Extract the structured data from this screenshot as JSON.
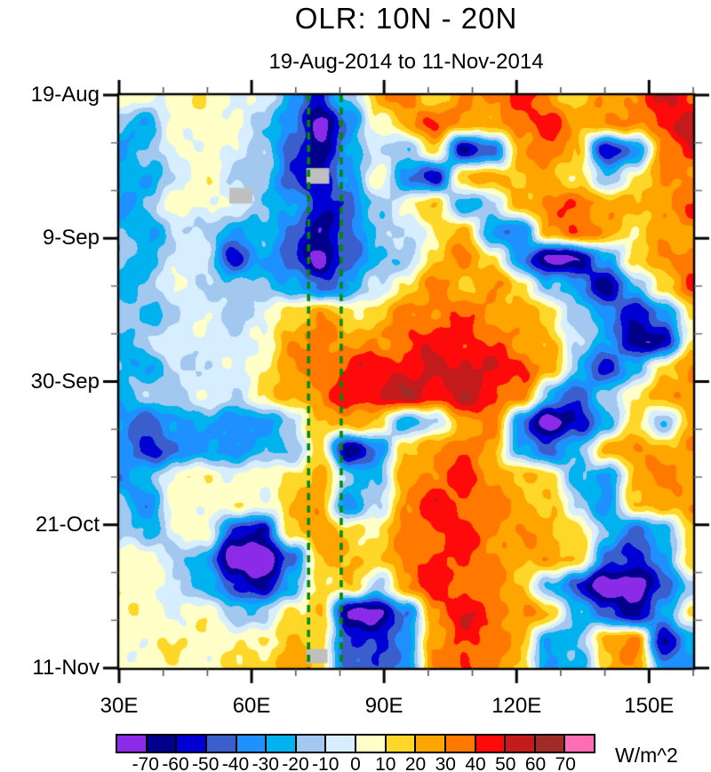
{
  "header": {
    "title": "OLR: 10N - 20N",
    "subtitle": "19-Aug-2014 to 11-Nov-2014"
  },
  "chart_data": {
    "type": "heatmap",
    "title": "OLR: 10N - 20N",
    "subtitle": "19-Aug-2014 to 11-Nov-2014",
    "units": "W/m^2",
    "x_axis": {
      "min_lon": 30,
      "max_lon": 160,
      "major_tick_lons": [
        30,
        60,
        90,
        120,
        150
      ],
      "major_tick_labels": [
        "30E",
        "60E",
        "90E",
        "120E",
        "150E"
      ],
      "minor_tick_lons": [
        40,
        50,
        70,
        80,
        100,
        110,
        130,
        140,
        160
      ]
    },
    "y_axis": {
      "min_day": 0,
      "max_day": 84,
      "major_tick_days": [
        0,
        21,
        42,
        63,
        84
      ],
      "major_tick_labels": [
        "19-Aug",
        "9-Sep",
        "30-Sep",
        "21-Oct",
        "11-Nov"
      ],
      "minor_tick_days": [
        7,
        14,
        28,
        35,
        49,
        56,
        70,
        77
      ]
    },
    "levels": [
      -70,
      -60,
      -50,
      -40,
      -30,
      -20,
      -10,
      0,
      10,
      20,
      30,
      40,
      50,
      60,
      70
    ],
    "palette": [
      "#8B2BE8",
      "#00008B",
      "#0000D5",
      "#3A5FCD",
      "#1E90FF",
      "#00B2EE",
      "#A2C8F0",
      "#D6EEFF",
      "#FFFFC8",
      "#FFD728",
      "#FFA500",
      "#FF7800",
      "#FF0A0A",
      "#C31A1C",
      "#9E2B28",
      "#FF6EB4"
    ],
    "colorbar": {
      "tick_labels": [
        "-70",
        "-60",
        "-50",
        "-40",
        "-30",
        "-20",
        "-10",
        "0",
        "10",
        "20",
        "30",
        "40",
        "50",
        "60",
        "70"
      ],
      "units": "W/m^2"
    },
    "reference_lines": [
      {
        "lon": 72.9,
        "color": "#008A00",
        "style": "dashed"
      },
      {
        "lon": 80.3,
        "color": "#008A00",
        "style": "dashed"
      }
    ],
    "missing_boxes": [
      {
        "lon0": 55.0,
        "lon1": 60.2,
        "day0": 13.6,
        "day1": 15.9
      },
      {
        "lon0": 72.4,
        "lon1": 77.6,
        "day0": 10.7,
        "day1": 13.0
      },
      {
        "lon0": 72.4,
        "lon1": 77.2,
        "day0": 81.2,
        "day1": 83.3
      }
    ],
    "missing_color": "#BFBFBF",
    "grid": {
      "lons": [
        30,
        36.5,
        43,
        49.5,
        56,
        62.5,
        69,
        75.5,
        82,
        88.5,
        95,
        101.5,
        108,
        114.5,
        121,
        127.5,
        134,
        140.5,
        147,
        153.5,
        160
      ],
      "days": [
        0,
        4,
        8,
        12,
        16,
        20,
        24,
        28,
        32,
        36,
        40,
        44,
        48,
        52,
        56,
        60,
        64,
        68,
        72,
        76,
        80,
        84
      ],
      "values": [
        [
          5,
          3,
          6,
          6,
          4,
          -5,
          -25,
          -55,
          -15,
          25,
          35,
          15,
          25,
          35,
          45,
          30,
          15,
          25,
          35,
          50,
          45
        ],
        [
          -12,
          -30,
          4,
          6,
          2,
          -12,
          -40,
          -75,
          -40,
          5,
          25,
          40,
          30,
          20,
          40,
          45,
          25,
          30,
          28,
          48,
          55
        ],
        [
          -35,
          -18,
          2,
          5,
          -4,
          -15,
          -45,
          -65,
          -30,
          -8,
          -20,
          15,
          -60,
          -45,
          25,
          35,
          20,
          -60,
          -35,
          30,
          45
        ],
        [
          -25,
          -32,
          -5,
          4,
          -8,
          -18,
          -48,
          -62,
          -35,
          12,
          -40,
          -55,
          15,
          28,
          18,
          22,
          15,
          -25,
          12,
          28,
          32
        ],
        [
          -35,
          -15,
          3,
          5,
          -5,
          -14,
          -32,
          -55,
          -45,
          -20,
          8,
          15,
          -25,
          -18,
          28,
          32,
          38,
          28,
          18,
          32,
          38
        ],
        [
          -22,
          -30,
          -8,
          -12,
          -30,
          -25,
          -38,
          -68,
          -42,
          -18,
          -12,
          10,
          25,
          -30,
          -45,
          30,
          40,
          28,
          12,
          25,
          28
        ],
        [
          -18,
          -25,
          -5,
          -10,
          -55,
          -28,
          -45,
          -78,
          -45,
          -22,
          -15,
          18,
          30,
          15,
          -35,
          -75,
          -70,
          -30,
          15,
          30,
          35
        ],
        [
          -30,
          -12,
          -3,
          -6,
          -20,
          -15,
          -30,
          -45,
          -28,
          -12,
          15,
          30,
          22,
          28,
          15,
          -20,
          -35,
          -65,
          -25,
          20,
          40
        ],
        [
          -15,
          -28,
          -8,
          -4,
          -10,
          -8,
          18,
          28,
          12,
          18,
          30,
          35,
          38,
          30,
          22,
          15,
          -15,
          -35,
          -55,
          -40,
          15
        ],
        [
          -25,
          -10,
          -5,
          -3,
          -8,
          5,
          25,
          35,
          25,
          30,
          40,
          45,
          42,
          38,
          30,
          20,
          -10,
          -30,
          -70,
          -60,
          10
        ],
        [
          -20,
          -32,
          -10,
          -6,
          -5,
          8,
          28,
          38,
          42,
          48,
          45,
          52,
          55,
          48,
          42,
          25,
          -20,
          -55,
          -25,
          15,
          28
        ],
        [
          -30,
          -15,
          -8,
          -4,
          -6,
          10,
          25,
          32,
          45,
          52,
          58,
          50,
          55,
          45,
          35,
          -25,
          -45,
          -20,
          15,
          22,
          30
        ],
        [
          -30,
          -45,
          -35,
          -25,
          -40,
          -30,
          -15,
          20,
          25,
          15,
          -25,
          -15,
          28,
          32,
          -35,
          -80,
          -60,
          -25,
          10,
          -15,
          22
        ],
        [
          -35,
          -55,
          -40,
          -30,
          -35,
          -25,
          -18,
          15,
          -70,
          -40,
          18,
          30,
          40,
          25,
          -30,
          -45,
          -20,
          25,
          30,
          20,
          28
        ],
        [
          -40,
          -20,
          5,
          6,
          4,
          3,
          15,
          22,
          -15,
          -22,
          28,
          35,
          42,
          30,
          20,
          18,
          -25,
          -35,
          22,
          35,
          30
        ],
        [
          -15,
          -35,
          3,
          6,
          5,
          4,
          18,
          25,
          -35,
          -15,
          35,
          45,
          40,
          32,
          25,
          20,
          -15,
          -30,
          15,
          30,
          25
        ],
        [
          -12,
          -28,
          4,
          6,
          -50,
          -65,
          20,
          28,
          15,
          12,
          30,
          40,
          45,
          35,
          28,
          22,
          15,
          -20,
          -40,
          -30,
          20
        ],
        [
          5,
          6,
          -15,
          -30,
          -80,
          -85,
          -45,
          18,
          22,
          18,
          35,
          42,
          38,
          32,
          25,
          28,
          18,
          -45,
          -55,
          -30,
          22
        ],
        [
          8,
          5,
          -10,
          -20,
          -55,
          -60,
          -30,
          15,
          18,
          -15,
          30,
          45,
          40,
          30,
          22,
          -25,
          -50,
          -80,
          -80,
          -45,
          -20
        ],
        [
          6,
          4,
          3,
          5,
          -12,
          -20,
          15,
          20,
          -75,
          -70,
          -45,
          35,
          48,
          40,
          28,
          20,
          -20,
          -50,
          -60,
          -35,
          15
        ],
        [
          5,
          6,
          8,
          6,
          5,
          12,
          20,
          15,
          -50,
          -55,
          -30,
          25,
          42,
          35,
          25,
          -30,
          -20,
          25,
          30,
          -60,
          -25
        ],
        [
          4,
          6,
          8,
          5,
          8,
          15,
          25,
          18,
          -45,
          -50,
          -35,
          28,
          45,
          30,
          18,
          -35,
          -25,
          20,
          30,
          -30,
          -40
        ]
      ]
    }
  }
}
